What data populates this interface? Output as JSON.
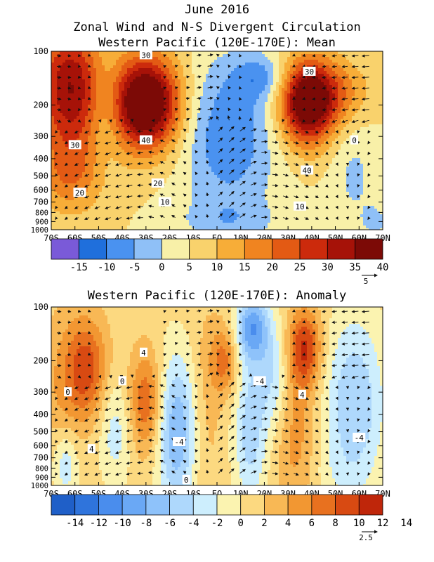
{
  "title": "June 2016",
  "subtitle": "Zonal Wind and N-S Divergent Circulation",
  "chart_data": [
    {
      "type": "heatmap",
      "title": "Western Pacific (120E-170E): Mean",
      "x_ticks": [
        "70S",
        "60S",
        "50S",
        "40S",
        "30S",
        "20S",
        "10S",
        "EQ",
        "10N",
        "20N",
        "30N",
        "40N",
        "50N",
        "60N",
        "70N"
      ],
      "x_values": [
        -70,
        -60,
        -50,
        -40,
        -30,
        -20,
        -10,
        0,
        10,
        20,
        30,
        40,
        50,
        60,
        70
      ],
      "xlim": [
        -70,
        70
      ],
      "y_ticks": [
        "100",
        "200",
        "300",
        "400",
        "500",
        "600",
        "700",
        "800",
        "900",
        "1000"
      ],
      "y_values": [
        100,
        200,
        300,
        400,
        500,
        600,
        700,
        800,
        900,
        1000
      ],
      "ylim": [
        1000,
        100
      ],
      "y_scale": "log",
      "colorbar": {
        "labels": [
          "-15",
          "-10",
          "-5",
          "0",
          "5",
          "10",
          "15",
          "20",
          "25",
          "30",
          "35",
          "40"
        ],
        "colors": [
          "#7a5ad8",
          "#1f6fdc",
          "#4a92f0",
          "#8fc0f7",
          "#f8f0a8",
          "#f9d26c",
          "#f7ad38",
          "#f08420",
          "#e35a14",
          "#cc2a0c",
          "#a61208",
          "#7c0a06"
        ]
      },
      "contour_labels": [
        {
          "text": "30",
          "lon": -30,
          "p": 105
        },
        {
          "text": "30",
          "lon": 39,
          "p": 130
        },
        {
          "text": "40",
          "lon": -30,
          "p": 315
        },
        {
          "text": "30",
          "lon": -60,
          "p": 335
        },
        {
          "text": "0",
          "lon": 58,
          "p": 315
        },
        {
          "text": "40",
          "lon": 38,
          "p": 465
        },
        {
          "text": "20",
          "lon": -25,
          "p": 550
        },
        {
          "text": "20",
          "lon": -58,
          "p": 620
        },
        {
          "text": "10",
          "lon": -22,
          "p": 700
        },
        {
          "text": "10",
          "lon": 35,
          "p": 740
        }
      ],
      "features": [
        {
          "lon": -30,
          "p": 195,
          "v": 44,
          "a": 10,
          "b": 0.42
        },
        {
          "lon": 38,
          "p": 195,
          "v": 38,
          "a": 8,
          "b": 0.38
        },
        {
          "lon": -62,
          "p": 160,
          "v": 30,
          "a": 10,
          "b": 0.6
        },
        {
          "lon": -47,
          "p": 200,
          "v": -8,
          "a": 5,
          "b": 0.5
        },
        {
          "lon": -62,
          "p": 500,
          "v": 12,
          "a": 10,
          "b": 0.35
        },
        {
          "lon": 5,
          "p": 300,
          "v": -14,
          "a": 14,
          "b": 0.7
        },
        {
          "lon": 58,
          "p": 500,
          "v": -6,
          "a": 7,
          "b": 0.5
        },
        {
          "lon": 18,
          "p": 140,
          "v": -10,
          "a": 8,
          "b": 0.2
        },
        {
          "lon": 50,
          "p": 170,
          "v": 12,
          "a": 10,
          "b": 0.3
        },
        {
          "lon": 5,
          "p": 900,
          "v": -6,
          "a": 15,
          "b": 0.2
        },
        {
          "lon": 67,
          "p": 900,
          "v": -6,
          "a": 4,
          "b": 0.15
        }
      ],
      "base": 5,
      "vector_reference": "5"
    },
    {
      "type": "heatmap",
      "title": "Western Pacific (120E-170E): Anomaly",
      "x_ticks": [
        "70S",
        "60S",
        "50S",
        "40S",
        "30S",
        "20S",
        "10S",
        "EQ",
        "10N",
        "20N",
        "30N",
        "40N",
        "50N",
        "60N",
        "70N"
      ],
      "x_values": [
        -70,
        -60,
        -50,
        -40,
        -30,
        -20,
        -10,
        0,
        10,
        20,
        30,
        40,
        50,
        60,
        70
      ],
      "xlim": [
        -70,
        70
      ],
      "y_ticks": [
        "100",
        "200",
        "300",
        "400",
        "500",
        "600",
        "700",
        "800",
        "900",
        "1000"
      ],
      "y_values": [
        100,
        200,
        300,
        400,
        500,
        600,
        700,
        800,
        900,
        1000
      ],
      "ylim": [
        1000,
        100
      ],
      "y_scale": "log",
      "colorbar": {
        "labels": [
          "-14",
          "-12",
          "-10",
          "-8",
          "-6",
          "-4",
          "-2",
          "0",
          "2",
          "4",
          "6",
          "8",
          "10",
          "12",
          "14"
        ],
        "colors": [
          "#1f5fc8",
          "#2f74dc",
          "#4a8ded",
          "#6aa8f5",
          "#8ec2fa",
          "#aed8fc",
          "#cdeefd",
          "#fbf3b0",
          "#fcd980",
          "#f8b855",
          "#f29732",
          "#e8711f",
          "#d84a12",
          "#bf260a"
        ]
      },
      "contour_labels": [
        {
          "text": "4",
          "lon": -31,
          "p": 180
        },
        {
          "text": "0",
          "lon": -40,
          "p": 260
        },
        {
          "text": "-4",
          "lon": 18,
          "p": 260
        },
        {
          "text": "0",
          "lon": -63,
          "p": 300
        },
        {
          "text": "4",
          "lon": 36,
          "p": 310
        },
        {
          "text": "-4",
          "lon": 60,
          "p": 540
        },
        {
          "text": "-4",
          "lon": -16,
          "p": 570
        },
        {
          "text": "4",
          "lon": -53,
          "p": 625
        },
        {
          "text": "0",
          "lon": -13,
          "p": 930
        }
      ],
      "features": [
        {
          "lon": -55,
          "p": 220,
          "v": 8,
          "a": 6,
          "b": 0.45
        },
        {
          "lon": -65,
          "p": 300,
          "v": 3,
          "a": 6,
          "b": 0.7
        },
        {
          "lon": -64,
          "p": 750,
          "v": -5,
          "a": 4,
          "b": 0.35
        },
        {
          "lon": -43,
          "p": 500,
          "v": -4,
          "a": 5,
          "b": 0.5
        },
        {
          "lon": -30,
          "p": 340,
          "v": 7,
          "a": 5,
          "b": 0.45
        },
        {
          "lon": -17,
          "p": 500,
          "v": -9,
          "a": 6,
          "b": 0.7
        },
        {
          "lon": -5,
          "p": 350,
          "v": 2,
          "a": 5,
          "b": 0.9
        },
        {
          "lon": 3,
          "p": 200,
          "v": 6,
          "a": 4,
          "b": 0.3
        },
        {
          "lon": 15,
          "p": 130,
          "v": -10,
          "a": 5,
          "b": 0.3
        },
        {
          "lon": 14,
          "p": 500,
          "v": -6,
          "a": 5,
          "b": 0.7
        },
        {
          "lon": 24,
          "p": 250,
          "v": -5,
          "a": 5,
          "b": 0.5
        },
        {
          "lon": 37,
          "p": 170,
          "v": 9,
          "a": 5,
          "b": 0.35
        },
        {
          "lon": 33,
          "p": 500,
          "v": 4,
          "a": 6,
          "b": 0.7
        },
        {
          "lon": 58,
          "p": 350,
          "v": -7,
          "a": 9,
          "b": 0.8
        },
        {
          "lon": 50,
          "p": 900,
          "v": -1,
          "a": 8,
          "b": 0.3
        }
      ],
      "base": 1,
      "vector_reference": "2.5"
    }
  ]
}
